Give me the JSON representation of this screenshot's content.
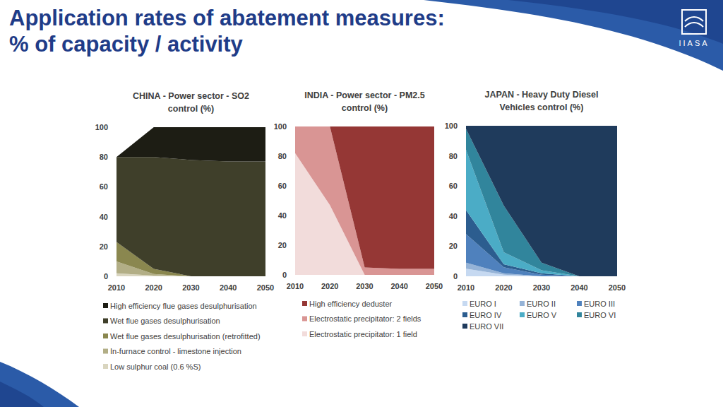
{
  "title": [
    "Application rates of abatement measures:",
    "% of capacity / activity"
  ],
  "logo": "IIASA",
  "chart_data": [
    {
      "type": "area",
      "stacked": true,
      "legend": "bottom",
      "title": "CHINA - Power sector - SO2 control (%)",
      "x": [
        2010,
        2020,
        2030,
        2040,
        2050
      ],
      "xlim": [
        2010,
        2050
      ],
      "xticks": [
        2010,
        2020,
        2030,
        2040,
        2050
      ],
      "ylim": [
        0,
        100
      ],
      "yticks": [
        0,
        20,
        40,
        60,
        80,
        100
      ],
      "series": [
        {
          "name": "Low sulphur coal (0.6 %S)",
          "color": "#d9d5bf",
          "values": [
            2,
            0.5,
            0,
            0,
            0
          ]
        },
        {
          "name": "In-furnace control - limestone injection",
          "color": "#b2ae86",
          "values": [
            8,
            1,
            0,
            0,
            0
          ]
        },
        {
          "name": "Wet flue gases desulphurisation (retrofitted)",
          "color": "#8a874f",
          "values": [
            13,
            3.5,
            0,
            0,
            0
          ]
        },
        {
          "name": "Wet flue gases desulphurisation",
          "color": "#3f3f2a",
          "values": [
            57,
            75,
            78,
            77,
            77
          ]
        },
        {
          "name": "High efficiency flue gases desulphurisation",
          "color": "#1d1d14",
          "values": [
            0,
            20,
            22,
            23,
            23
          ]
        }
      ]
    },
    {
      "type": "area",
      "stacked": true,
      "legend": "bottom",
      "title": "INDIA - Power sector - PM2.5 control (%)",
      "x": [
        2010,
        2020,
        2030,
        2040,
        2050
      ],
      "xlim": [
        2010,
        2050
      ],
      "xticks": [
        2010,
        2020,
        2030,
        2040,
        2050
      ],
      "ylim": [
        0,
        100
      ],
      "yticks": [
        0,
        20,
        40,
        60,
        80,
        100
      ],
      "series": [
        {
          "name": "Electrostatic precipitator: 1 field",
          "color": "#f2dcdb",
          "values": [
            82,
            47,
            0,
            0,
            0
          ]
        },
        {
          "name": "Electrostatic precipitator: 2 fields",
          "color": "#d99594",
          "values": [
            18,
            53,
            5,
            4,
            4
          ]
        },
        {
          "name": "High efficiency deduster",
          "color": "#953735",
          "values": [
            0,
            0,
            95,
            96,
            96
          ]
        }
      ]
    },
    {
      "type": "area",
      "stacked": true,
      "legend": "bottom",
      "title": "JAPAN - Heavy Duty Diesel Vehicles control (%)",
      "x": [
        2010,
        2020,
        2030,
        2040,
        2050
      ],
      "xlim": [
        2010,
        2050
      ],
      "xticks": [
        2010,
        2020,
        2030,
        2040,
        2050
      ],
      "ylim": [
        0,
        100
      ],
      "yticks": [
        0,
        20,
        40,
        60,
        80,
        100
      ],
      "series": [
        {
          "name": "EURO I",
          "color": "#c6d9f1",
          "values": [
            5,
            1,
            0,
            0,
            0
          ]
        },
        {
          "name": "EURO II",
          "color": "#95b3d7",
          "values": [
            4,
            1,
            0,
            0,
            0
          ]
        },
        {
          "name": "EURO III",
          "color": "#4f81bd",
          "values": [
            19,
            4,
            1,
            0,
            0
          ]
        },
        {
          "name": "EURO IV",
          "color": "#2c5d8f",
          "values": [
            16,
            2,
            1,
            0,
            0
          ]
        },
        {
          "name": "EURO V",
          "color": "#4bacc6",
          "values": [
            40,
            8,
            2,
            0,
            0
          ]
        },
        {
          "name": "EURO VI",
          "color": "#31859c",
          "values": [
            14,
            31,
            5,
            0,
            0
          ]
        },
        {
          "name": "EURO VII",
          "color": "#1f3b5c",
          "values": [
            2,
            53,
            91,
            100,
            100
          ]
        }
      ]
    }
  ]
}
